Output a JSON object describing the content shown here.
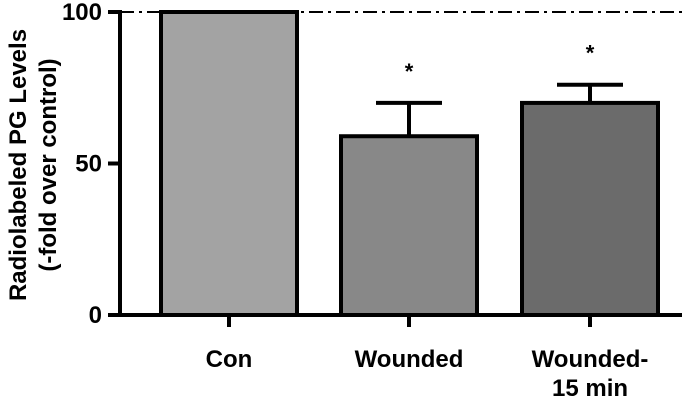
{
  "chart_data": {
    "type": "bar",
    "categories": [
      "Con",
      "Wounded",
      "Wounded-\n15 min"
    ],
    "values": [
      100,
      59,
      70
    ],
    "error_upper": [
      0,
      11,
      6
    ],
    "significance": [
      "",
      "*",
      "*"
    ],
    "bar_colors": [
      "#a3a3a3",
      "#888888",
      "#6b6b6b"
    ],
    "ylabel_lines": [
      "Radiolabeled PG Levels",
      "(-fold over control)"
    ],
    "yticks": [
      0,
      50,
      100
    ],
    "ylim": [
      0,
      100
    ],
    "reference_line": 100,
    "grid": false
  }
}
